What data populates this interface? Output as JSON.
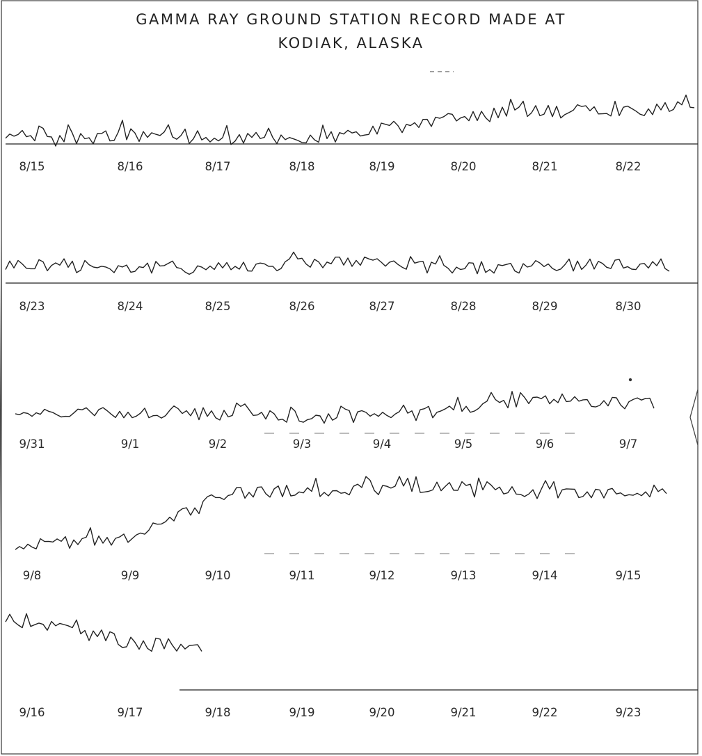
{
  "header": {
    "title_line1": "GAMMA RAY GROUND STATION RECORD MADE AT",
    "title_line2": "KODIAK, ALASKA"
  },
  "colors": {
    "ink": "#222222",
    "paper": "#ffffff"
  },
  "chart_data": [
    {
      "type": "line",
      "categories": [
        "8/15",
        "8/16",
        "8/17",
        "8/18",
        "8/19",
        "8/20",
        "8/21",
        "8/22"
      ],
      "series": [
        {
          "values": [
            0.1,
            0.3,
            0.2,
            0.2,
            0.7,
            1.0,
            1.1,
            1.2
          ]
        }
      ],
      "ylim": [
        0,
        3
      ],
      "grid": false
    },
    {
      "type": "line",
      "categories": [
        "8/23",
        "8/24",
        "8/25",
        "8/26",
        "8/27",
        "8/28",
        "8/29",
        "8/30"
      ],
      "series": [
        {
          "values": [
            0.6,
            0.5,
            0.5,
            0.7,
            0.5,
            0.5,
            0.6,
            0.6
          ]
        }
      ],
      "ylim": [
        0,
        3
      ],
      "grid": false
    },
    {
      "type": "line",
      "categories": [
        "9/31",
        "9/1",
        "9/2",
        "9/3",
        "9/4",
        "9/5",
        "9/6",
        "9/7"
      ],
      "series": [
        {
          "values": [
            0.4,
            0.5,
            0.4,
            0.3,
            0.4,
            0.9,
            0.8,
            0.8
          ]
        }
      ],
      "ylim": [
        0,
        3
      ],
      "grid": false
    },
    {
      "type": "line",
      "categories": [
        "9/8",
        "9/9",
        "9/10",
        "9/11",
        "9/12",
        "9/13",
        "9/14",
        "9/15"
      ],
      "series": [
        {
          "values": [
            0.1,
            0.2,
            1.8,
            1.9,
            2.0,
            1.8,
            1.8,
            1.7
          ]
        }
      ],
      "ylim": [
        0,
        3
      ],
      "grid": false
    },
    {
      "type": "line",
      "categories": [
        "9/16",
        "9/17",
        "9/18",
        "9/19",
        "9/20",
        "9/21",
        "9/22",
        "9/23"
      ],
      "series": [
        {
          "values": [
            2.2,
            1.5,
            1.3,
            null,
            null,
            null,
            null,
            null
          ]
        }
      ],
      "ylim": [
        0,
        3
      ],
      "grid": false
    }
  ]
}
